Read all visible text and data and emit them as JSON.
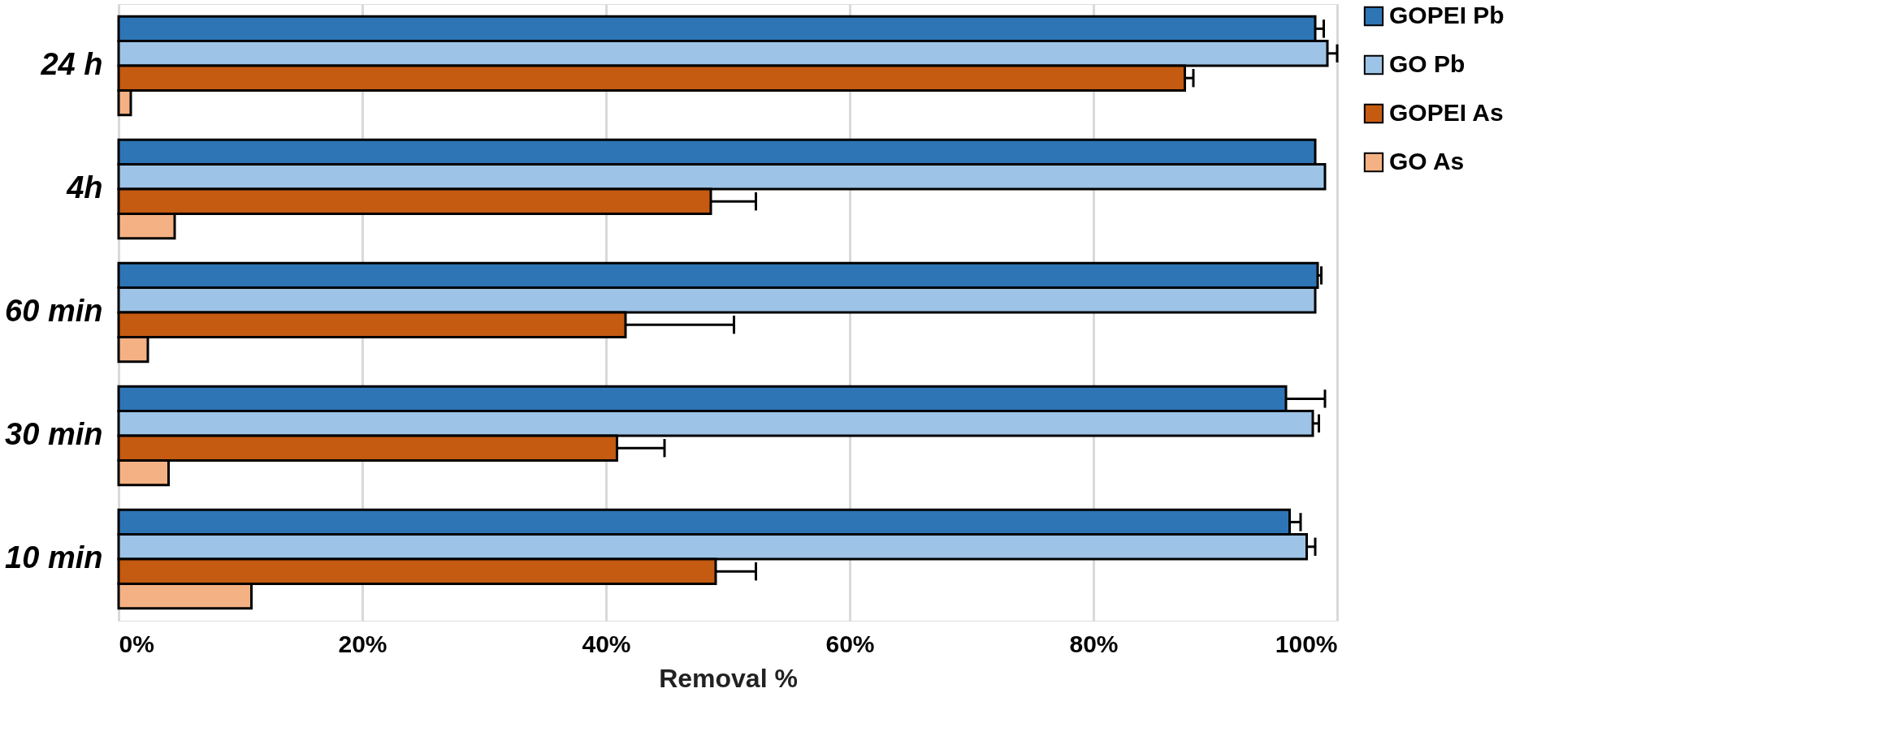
{
  "chart_data": {
    "type": "bar",
    "orientation": "horizontal",
    "xlabel": "Removal %",
    "categories": [
      "24 h",
      "4h",
      "60 min",
      "30 min",
      "10 min"
    ],
    "series": [
      {
        "name": "GOPEI Pb",
        "color": "#2e75b6",
        "values": [
          98.2,
          98.2,
          98.4,
          95.8,
          96.1
        ],
        "errors": [
          [
            98.2,
            98.9
          ],
          null,
          [
            98.4,
            98.7
          ],
          [
            95.8,
            99.0
          ],
          [
            96.1,
            97.0
          ]
        ]
      },
      {
        "name": "GO Pb",
        "color": "#9dc3e6",
        "values": [
          99.2,
          99.0,
          98.2,
          98.0,
          97.5
        ],
        "errors": [
          [
            99.2,
            100.0
          ],
          null,
          null,
          [
            98.0,
            98.5
          ],
          [
            97.5,
            98.2
          ]
        ]
      },
      {
        "name": "GOPEI As",
        "color": "#c55a11",
        "values": [
          87.5,
          48.6,
          41.6,
          40.9,
          49.0
        ],
        "errors": [
          [
            87.5,
            88.2
          ],
          [
            48.6,
            52.3
          ],
          [
            41.6,
            50.5
          ],
          [
            40.9,
            44.8
          ],
          [
            49.0,
            52.3
          ]
        ]
      },
      {
        "name": "GO As",
        "color": "#f4b183",
        "values": [
          1.0,
          4.6,
          2.4,
          4.1,
          10.9
        ]
      }
    ],
    "xlim": [
      0,
      100
    ],
    "xticks": [
      {
        "value": 0,
        "label": "0%"
      },
      {
        "value": 20,
        "label": "20%"
      },
      {
        "value": 40,
        "label": "40%"
      },
      {
        "value": 60,
        "label": "60%"
      },
      {
        "value": 80,
        "label": "80%"
      },
      {
        "value": 100,
        "label": "100%"
      }
    ],
    "grid": "x",
    "legend": "right"
  }
}
